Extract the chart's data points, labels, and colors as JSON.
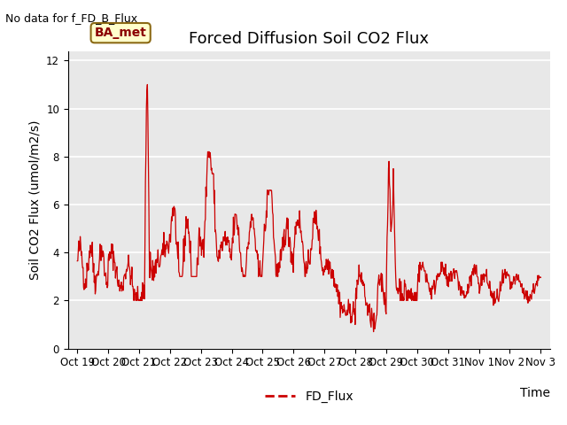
{
  "title": "Forced Diffusion Soil CO2 Flux",
  "no_data_text": "No data for f_FD_B_Flux",
  "label_box_text": "BA_met",
  "xlabel": "Time",
  "ylabel": "Soil CO2 Flux (umol/m2/s)",
  "ylim": [
    0,
    12.4
  ],
  "ylim_display": [
    0,
    12
  ],
  "line_color": "#cc0000",
  "legend_label": "FD_Flux",
  "bg_color": "#e8e8e8",
  "title_fontsize": 13,
  "axis_fontsize": 10,
  "tick_fontsize": 8.5,
  "x_tick_labels": [
    "Oct 19",
    "Oct 20",
    "Oct 21",
    "Oct 22",
    "Oct 23",
    "Oct 24",
    "Oct 25",
    "Oct 26",
    "Oct 27",
    "Oct 28",
    "Oct 29",
    "Oct 30",
    "Oct 31",
    "Nov 1",
    "Nov 2",
    "Nov 3"
  ],
  "yticks": [
    0,
    2,
    4,
    6,
    8,
    10,
    12
  ]
}
